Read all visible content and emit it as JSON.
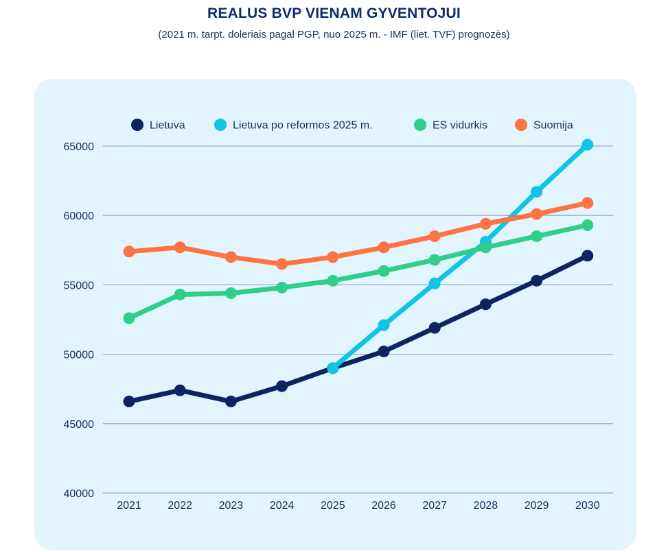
{
  "title": "REALUS BVP VIENAM GYVENTOJUI",
  "subtitle": "(2021 m. tarpt. doleriais pagal PGP, nuo 2025 m. - IMF (liet. TVF) prognozės)",
  "chart_data": {
    "type": "line",
    "title": "REALUS BVP VIENAM GYVENTOJUI",
    "subtitle": "(2021 m. tarpt. doleriais pagal PGP, nuo 2025 m. - IMF (liet. TVF) prognozės)",
    "x": [
      "2021",
      "2022",
      "2023",
      "2024",
      "2025",
      "2026",
      "2027",
      "2028",
      "2029",
      "2030"
    ],
    "ylim": [
      40000,
      65000
    ],
    "yticks": [
      40000,
      45000,
      50000,
      55000,
      60000,
      65000
    ],
    "grid": true,
    "legend_position": "top",
    "series": [
      {
        "name": "Lietuva",
        "color": "#0c2461",
        "values": [
          46600,
          47400,
          46600,
          47700,
          49000,
          50200,
          51900,
          53600,
          55300,
          57100
        ]
      },
      {
        "name": "Lietuva po reformos 2025 m.",
        "color": "#0ec5e6",
        "values": [
          null,
          null,
          null,
          null,
          49000,
          52100,
          55100,
          58100,
          61700,
          65100
        ]
      },
      {
        "name": "ES vidurkis",
        "color": "#2fcf8a",
        "values": [
          52600,
          54300,
          54400,
          54800,
          55300,
          56000,
          56800,
          57700,
          58500,
          59300
        ]
      },
      {
        "name": "Suomija",
        "color": "#ff7242",
        "values": [
          57400,
          57700,
          57000,
          56500,
          57000,
          57700,
          58500,
          59400,
          60100,
          60900
        ]
      }
    ]
  }
}
